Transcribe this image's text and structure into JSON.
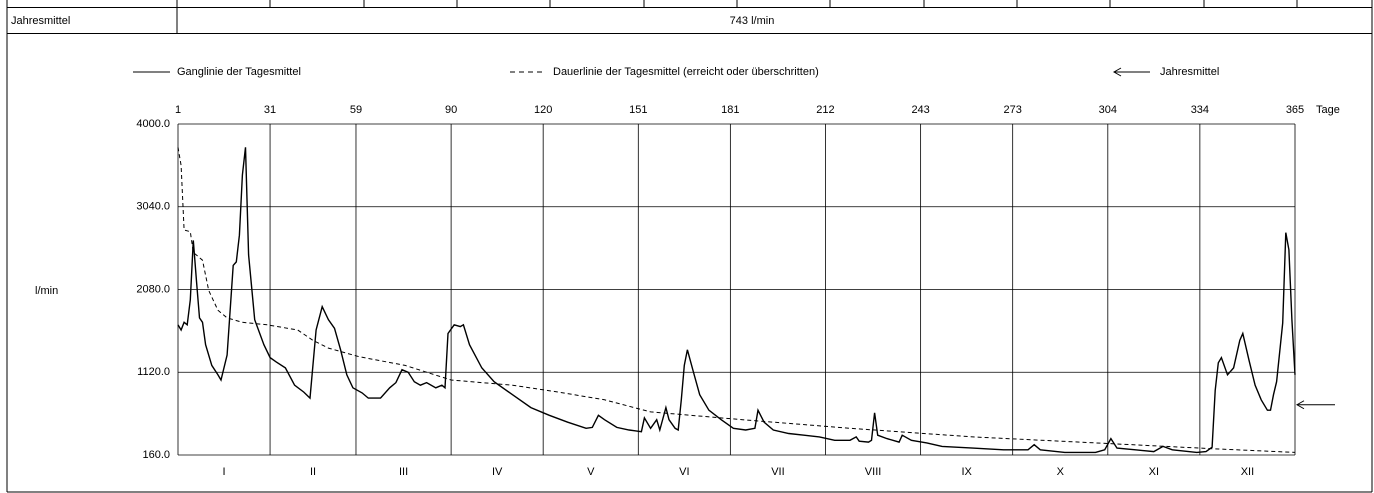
{
  "table_row": {
    "label": "Jahresmittel",
    "value": "743 l/min"
  },
  "chart_data": {
    "type": "line",
    "ylabel": "l/min",
    "xlabel": "Tage",
    "xlim": [
      1,
      365
    ],
    "ylim": [
      160,
      4000
    ],
    "xticks": [
      1,
      31,
      59,
      90,
      120,
      151,
      181,
      212,
      243,
      273,
      304,
      334,
      365
    ],
    "yticks": [
      {
        "value": 160,
        "label": "160.0"
      },
      {
        "value": 1120,
        "label": "1120.0"
      },
      {
        "value": 2080,
        "label": "2080.0"
      },
      {
        "value": 3040,
        "label": "3040.0"
      },
      {
        "value": 4000,
        "label": "4000.0"
      }
    ],
    "categories": [
      "I",
      "II",
      "III",
      "IV",
      "V",
      "VI",
      "VII",
      "VIII",
      "IX",
      "X",
      "XI",
      "XII"
    ],
    "grid": true,
    "mean_marker": {
      "label": "Jahresmittel",
      "value": 743
    },
    "series": [
      {
        "name": "Ganglinie der Tagesmittel",
        "color": "#000000",
        "style": "solid",
        "x": [
          1,
          2,
          3,
          4,
          5,
          6,
          7,
          8,
          9,
          10,
          12,
          14,
          15,
          17,
          19,
          20,
          21,
          22,
          23,
          24,
          26,
          29,
          31,
          33,
          36,
          39,
          42,
          44,
          46,
          48,
          50,
          52,
          54,
          56,
          58,
          61,
          63,
          67,
          70,
          72,
          74,
          76,
          78,
          80,
          82,
          85,
          87,
          88,
          89,
          91,
          93,
          94,
          96,
          100,
          104,
          110,
          116,
          122,
          128,
          134,
          136,
          138,
          140,
          144,
          148,
          152,
          153,
          155,
          157,
          158,
          160,
          161,
          163,
          164,
          165,
          166,
          167,
          169,
          171,
          174,
          178,
          182,
          186,
          189,
          190,
          192,
          195,
          200,
          205,
          210,
          215,
          220,
          222,
          223,
          226,
          227,
          228,
          229,
          232,
          236,
          237,
          240,
          245,
          250,
          260,
          270,
          278,
          280,
          282,
          290,
          300,
          303,
          305,
          307,
          313,
          319,
          322,
          325,
          333,
          336,
          338,
          339,
          340,
          341,
          343,
          345,
          347,
          348,
          350,
          352,
          354,
          356,
          357,
          358,
          359,
          361,
          362,
          363,
          364,
          365
        ],
        "values": [
          1670,
          1610,
          1700,
          1670,
          1960,
          2650,
          2190,
          1750,
          1700,
          1440,
          1200,
          1090,
          1030,
          1320,
          2360,
          2400,
          2710,
          3410,
          3730,
          2480,
          1730,
          1440,
          1290,
          1240,
          1170,
          970,
          890,
          820,
          1610,
          1880,
          1730,
          1630,
          1380,
          1090,
          940,
          880,
          820,
          820,
          940,
          1000,
          1150,
          1120,
          1010,
          970,
          1000,
          940,
          970,
          940,
          1570,
          1670,
          1650,
          1670,
          1440,
          1170,
          1010,
          860,
          710,
          620,
          540,
          470,
          480,
          620,
          570,
          480,
          450,
          430,
          590,
          470,
          570,
          450,
          710,
          570,
          470,
          450,
          800,
          1200,
          1380,
          1120,
          860,
          680,
          570,
          470,
          450,
          470,
          680,
          540,
          450,
          410,
          390,
          370,
          330,
          330,
          370,
          320,
          310,
          330,
          650,
          390,
          350,
          310,
          390,
          330,
          300,
          260,
          240,
          220,
          220,
          280,
          220,
          190,
          190,
          220,
          350,
          240,
          220,
          200,
          260,
          220,
          190,
          200,
          250,
          910,
          1230,
          1290,
          1090,
          1170,
          1490,
          1570,
          1260,
          970,
          800,
          680,
          680,
          860,
          1010,
          1690,
          2740,
          2540,
          1730,
          1090
        ]
      },
      {
        "name": "Dauerlinie der Tagesmittel (erreicht oder überschritten)",
        "color": "#000000",
        "style": "dashed",
        "x": [
          1,
          2,
          3,
          5,
          6,
          9,
          11,
          14,
          17,
          22,
          30,
          40,
          45,
          50,
          60,
          75,
          90,
          110,
          125,
          140,
          155,
          185,
          220,
          260,
          300,
          340,
          365
        ],
        "values": [
          3730,
          3520,
          2770,
          2750,
          2510,
          2420,
          2070,
          1840,
          1750,
          1700,
          1670,
          1610,
          1490,
          1400,
          1300,
          1200,
          1030,
          970,
          890,
          800,
          660,
          570,
          470,
          370,
          300,
          230,
          190
        ]
      }
    ]
  }
}
